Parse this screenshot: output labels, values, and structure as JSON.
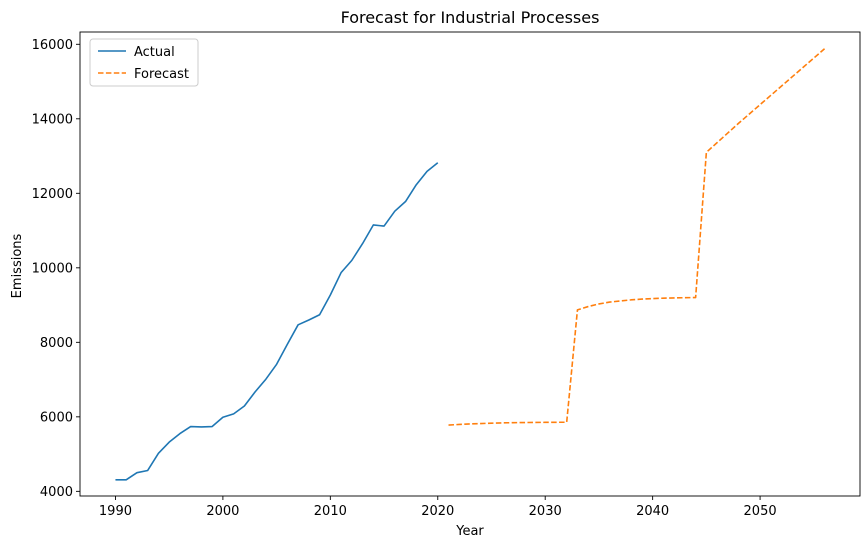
{
  "chart_data": {
    "type": "line",
    "title": "Forecast for Industrial Processes",
    "xlabel": "Year",
    "ylabel": "Emissions",
    "xlim": [
      1986.7,
      2059.3
    ],
    "ylim": [
      3875,
      16330
    ],
    "xticks": [
      1990,
      2000,
      2010,
      2020,
      2030,
      2040,
      2050
    ],
    "yticks": [
      4000,
      6000,
      8000,
      10000,
      12000,
      14000,
      16000
    ],
    "grid": false,
    "legend_position": "top-left",
    "series": [
      {
        "name": "Actual",
        "color": "#1f77b4",
        "style": "solid",
        "x": [
          1990,
          1991,
          1992,
          1993,
          1994,
          1995,
          1996,
          1997,
          1998,
          1999,
          2000,
          2001,
          2002,
          2003,
          2004,
          2005,
          2006,
          2007,
          2008,
          2009,
          2010,
          2011,
          2012,
          2013,
          2014,
          2015,
          2016,
          2017,
          2018,
          2019,
          2020
        ],
        "y": [
          4310,
          4310,
          4500,
          4560,
          5020,
          5320,
          5550,
          5740,
          5730,
          5740,
          5990,
          6080,
          6290,
          6670,
          7010,
          7410,
          7950,
          8470,
          8600,
          8740,
          9270,
          9870,
          10200,
          10650,
          11150,
          11120,
          11520,
          11780,
          12230,
          12590,
          12820
        ]
      },
      {
        "name": "Forecast",
        "color": "#ff7f0e",
        "style": "dashed",
        "x": [
          2021,
          2022,
          2023,
          2024,
          2025,
          2026,
          2027,
          2028,
          2029,
          2030,
          2031,
          2032,
          2033,
          2034,
          2035,
          2036,
          2037,
          2038,
          2039,
          2040,
          2041,
          2042,
          2043,
          2044,
          2045,
          2046,
          2047,
          2048,
          2049,
          2050,
          2051,
          2052,
          2053,
          2054,
          2055,
          2056
        ],
        "y": [
          5780,
          5795,
          5810,
          5820,
          5830,
          5838,
          5843,
          5847,
          5850,
          5852,
          5854,
          5855,
          8870,
          8960,
          9030,
          9080,
          9110,
          9140,
          9160,
          9175,
          9185,
          9192,
          9198,
          9202,
          13100,
          13360,
          13620,
          13880,
          14130,
          14380,
          14630,
          14880,
          15130,
          15380,
          15630,
          15880
        ]
      }
    ]
  }
}
